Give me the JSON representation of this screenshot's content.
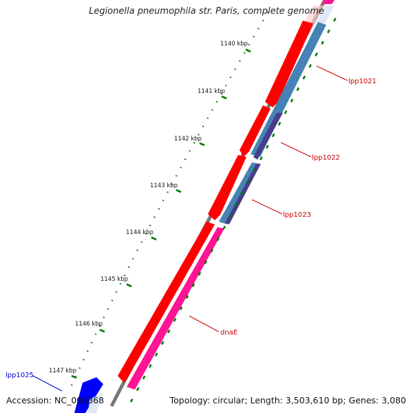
{
  "title": "Legionella pneumophila str. Paris, complete genome",
  "footer": {
    "accession": "Accession: NC_006368",
    "topology": "Topology: circular; Length: 3,503,610 bp; Genes: 3,080"
  },
  "ticks": [
    "1140 kbp",
    "1141 kbp",
    "1142 kbp",
    "1143 kbp",
    "1144 kbp",
    "1145 kbp",
    "1146 kbp",
    "1147 kbp"
  ],
  "genes": [
    {
      "name": "lpp1021",
      "color": "#cc0000"
    },
    {
      "name": "lpp1022",
      "color": "#cc0000"
    },
    {
      "name": "lpp1023",
      "color": "#cc0000"
    },
    {
      "name": "dnaE",
      "color": "#cc0000"
    },
    {
      "name": "lpp1025",
      "color": "#0000cc"
    }
  ],
  "colors": {
    "outer_feature": "#ff0000",
    "inner_feature": "#4682b4",
    "dnaE": "#ff1493",
    "reverse_feature": "#0000ff",
    "dark_feature": "#483d8b",
    "ruler": "#007700",
    "backbone": "#777777"
  }
}
